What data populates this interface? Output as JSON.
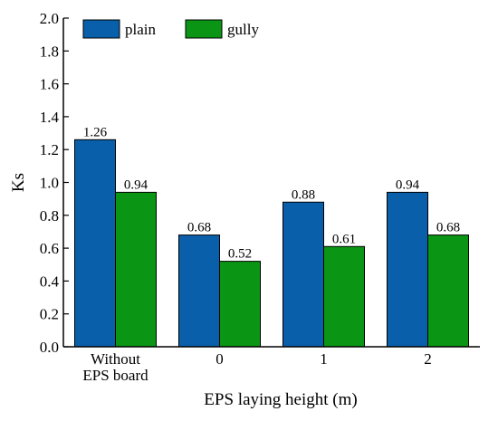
{
  "chart_data": {
    "type": "bar",
    "title": "",
    "xlabel": "EPS laying height (m)",
    "ylabel": "Ks",
    "ylim": [
      0,
      2.0
    ],
    "yticks": [
      0.0,
      0.2,
      0.4,
      0.6,
      0.8,
      1.0,
      1.2,
      1.4,
      1.6,
      1.8,
      2.0
    ],
    "ytick_labels": [
      "0.0",
      "0.2",
      "0.4",
      "0.6",
      "0.8",
      "1.0",
      "1.2",
      "1.4",
      "1.6",
      "1.8",
      "2.0"
    ],
    "categories": [
      [
        "Without",
        "EPS board"
      ],
      [
        "0"
      ],
      [
        "1"
      ],
      [
        "2"
      ]
    ],
    "series": [
      {
        "name": "plain",
        "color": "#0a5faa",
        "values": [
          1.26,
          0.68,
          0.88,
          0.94
        ],
        "labels": [
          "1.26",
          "0.68",
          "0.88",
          "0.94"
        ]
      },
      {
        "name": "gully",
        "color": "#0a9614",
        "values": [
          0.94,
          0.52,
          0.61,
          0.68
        ],
        "labels": [
          "0.94",
          "0.52",
          "0.61",
          "0.68"
        ]
      }
    ],
    "legend": "top-left",
    "grid": false
  }
}
